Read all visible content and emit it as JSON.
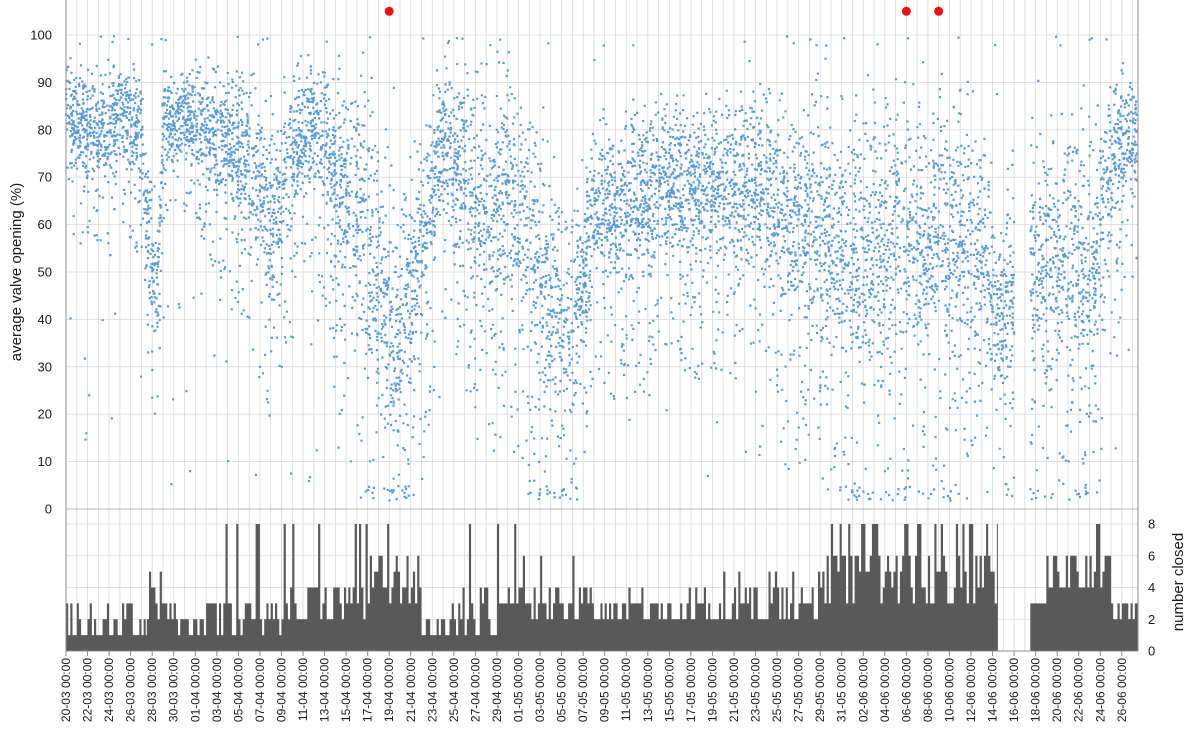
{
  "chart_data": [
    {
      "type": "scatter",
      "ylabel": "average valve opening (%)",
      "ylim": [
        0,
        100
      ],
      "yticks": [
        0,
        10,
        20,
        30,
        40,
        50,
        60,
        70,
        80,
        90,
        100
      ],
      "x_unit": "day (20 March to 27 June)",
      "xlim": [
        0,
        99.5
      ],
      "grid": true,
      "point_color": "#5b9bd5",
      "marker_color": "#ee1111",
      "markers": [
        {
          "x": 30.0,
          "y": 105
        },
        {
          "x": 78.0,
          "y": 105
        },
        {
          "x": 81.0,
          "y": 105
        }
      ],
      "profile": {
        "x": [
          0,
          1,
          3,
          5,
          7,
          7.5,
          8.5,
          9,
          11,
          13,
          15,
          17,
          19,
          21,
          23,
          25,
          27,
          28.5,
          30,
          31,
          33,
          35,
          37,
          39,
          41,
          43,
          45,
          47,
          49,
          51,
          53,
          55,
          57,
          59,
          61,
          63,
          65,
          67,
          69,
          71,
          73,
          75,
          77,
          79,
          81,
          83,
          85,
          86.5,
          87,
          89,
          91,
          93,
          95,
          97,
          99
        ],
        "center": [
          86,
          82,
          80,
          84,
          80,
          62,
          47,
          82,
          84,
          82,
          78,
          74,
          64,
          76,
          82,
          72,
          64,
          52,
          44,
          38,
          55,
          78,
          72,
          62,
          70,
          62,
          46,
          38,
          66,
          64,
          66,
          70,
          68,
          68,
          68,
          70,
          68,
          62,
          64,
          60,
          56,
          56,
          58,
          58,
          60,
          60,
          58,
          40,
          44,
          48,
          54,
          56,
          50,
          72,
          80
        ],
        "spread": [
          7,
          9,
          9,
          8,
          10,
          12,
          10,
          8,
          7,
          9,
          12,
          14,
          16,
          12,
          9,
          16,
          20,
          25,
          25,
          22,
          18,
          12,
          16,
          20,
          18,
          20,
          20,
          18,
          12,
          14,
          14,
          12,
          13,
          14,
          14,
          14,
          16,
          18,
          18,
          20,
          22,
          22,
          22,
          22,
          22,
          20,
          22,
          10,
          14,
          18,
          20,
          20,
          22,
          14,
          9
        ]
      },
      "gap": [
        88.0,
        89.5
      ]
    },
    {
      "type": "bar",
      "ylabel": "number closed",
      "ylim": [
        0,
        8
      ],
      "yticks": [
        0,
        2,
        4,
        6,
        8
      ],
      "bar_color": "#595959",
      "x_unit": "day (20 March to 27 June)",
      "segments": [
        {
          "x": [
            0,
            7.5
          ],
          "base": [
            1,
            2
          ],
          "high": 3
        },
        {
          "x": [
            7.5,
            9
          ],
          "base": [
            2,
            4
          ],
          "high": 5
        },
        {
          "x": [
            9,
            13
          ],
          "base": [
            1,
            2
          ],
          "high": 3
        },
        {
          "x": [
            13,
            20
          ],
          "base": [
            1,
            3
          ],
          "high": 8
        },
        {
          "x": [
            20,
            28
          ],
          "base": [
            2,
            4
          ],
          "high": 8
        },
        {
          "x": [
            28,
            33
          ],
          "base": [
            3,
            6
          ],
          "high": 8
        },
        {
          "x": [
            33,
            36
          ],
          "base": [
            1,
            2
          ],
          "high": 3
        },
        {
          "x": [
            36,
            42
          ],
          "base": [
            1,
            4
          ],
          "high": 8
        },
        {
          "x": [
            42,
            50
          ],
          "base": [
            2,
            4
          ],
          "high": 6
        },
        {
          "x": [
            50,
            60
          ],
          "base": [
            2,
            3
          ],
          "high": 4
        },
        {
          "x": [
            60,
            70
          ],
          "base": [
            2,
            4
          ],
          "high": 5
        },
        {
          "x": [
            70,
            86.5
          ],
          "base": [
            3,
            6
          ],
          "high": 8
        },
        {
          "x": [
            89.5,
            91
          ],
          "base": [
            3,
            3
          ],
          "high": 3
        },
        {
          "x": [
            91,
            97
          ],
          "base": [
            4,
            6
          ],
          "high": 8
        },
        {
          "x": [
            97,
            99.5
          ],
          "base": [
            2,
            3
          ],
          "high": 3
        }
      ],
      "gap": [
        87.0,
        89.5
      ]
    }
  ],
  "x_ticks": [
    "20-03 00:00",
    "22-03 00:00",
    "24-03 00:00",
    "26-03 00:00",
    "28-03 00:00",
    "30-03 00:00",
    "01-04 00:00",
    "03-04 00:00",
    "05-04 00:00",
    "07-04 00:00",
    "09-04 00:00",
    "11-04 00:00",
    "13-04 00:00",
    "15-04 00:00",
    "17-04 00:00",
    "19-04 00:00",
    "21-04 00:00",
    "23-04 00:00",
    "25-04 00:00",
    "27-04 00:00",
    "29-04 00:00",
    "01-05 00:00",
    "03-05 00:00",
    "05-05 00:00",
    "07-05 00:00",
    "09-05 00:00",
    "11-05 00:00",
    "13-05 00:00",
    "15-05 00:00",
    "17-05 00:00",
    "19-05 00:00",
    "21-05 00:00",
    "23-05 00:00",
    "25-05 00:00",
    "27-05 00:00",
    "29-05 00:00",
    "31-05 00:00",
    "02-06 00:00",
    "04-06 00:00",
    "06-06 00:00",
    "08-06 00:00",
    "10-06 00:00",
    "12-06 00:00",
    "14-06 00:00",
    "16-06 00:00",
    "18-06 00:00",
    "20-06 00:00",
    "22-06 00:00",
    "24-06 00:00",
    "26-06 00:00"
  ],
  "colors": {
    "grid": "#d9d9d9",
    "axis": "#8c8c8c",
    "text": "#1a1a1a"
  }
}
